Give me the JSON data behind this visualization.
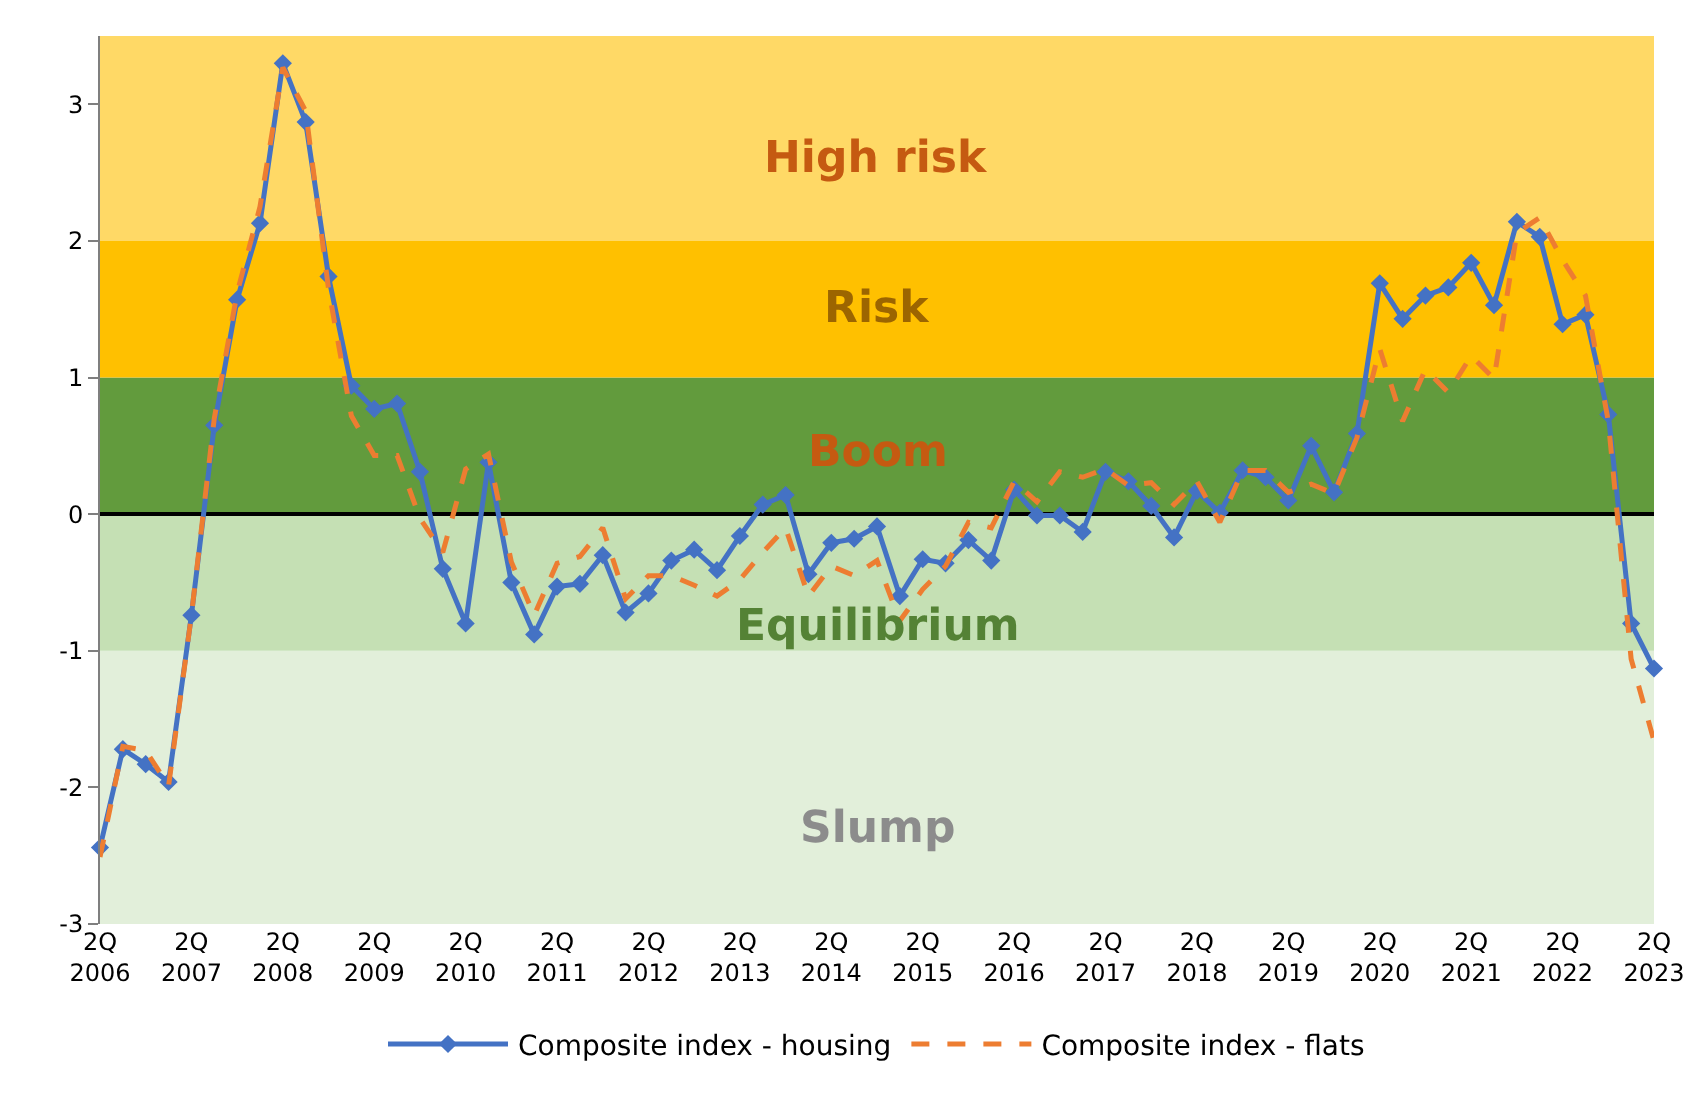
{
  "chart_data": {
    "type": "line",
    "categories": [
      "2Q 2006",
      null,
      null,
      null,
      "2Q 2007",
      null,
      null,
      null,
      "2Q 2008",
      null,
      null,
      null,
      "2Q 2009",
      null,
      null,
      null,
      "2Q 2010",
      null,
      null,
      null,
      "2Q 2011",
      null,
      null,
      null,
      "2Q 2012",
      null,
      null,
      null,
      "2Q 2013",
      null,
      null,
      null,
      "2Q 2014",
      null,
      null,
      null,
      "2Q 2015",
      null,
      null,
      null,
      "2Q 2016",
      null,
      null,
      null,
      "2Q 2017",
      null,
      null,
      null,
      "2Q 2018",
      null,
      null,
      null,
      "2Q 2019",
      null,
      null,
      null,
      "2Q 2020",
      null,
      null,
      null,
      "2Q 2021",
      null,
      null,
      null,
      "2Q 2022",
      null,
      null,
      null,
      "2Q 2023"
    ],
    "series": [
      {
        "name": "Composite index - housing",
        "color": "#4472c4",
        "marker": "diamond",
        "line_style": "solid",
        "values": [
          -2.44,
          -1.72,
          -1.83,
          -1.96,
          -0.74,
          0.65,
          1.57,
          2.13,
          3.3,
          2.87,
          1.74,
          0.94,
          0.77,
          0.81,
          0.31,
          -0.4,
          -0.8,
          0.38,
          -0.5,
          -0.88,
          -0.53,
          -0.51,
          -0.3,
          -0.72,
          -0.58,
          -0.34,
          -0.26,
          -0.41,
          -0.16,
          0.07,
          0.14,
          -0.44,
          -0.21,
          -0.18,
          -0.09,
          -0.6,
          -0.33,
          -0.36,
          -0.19,
          -0.34,
          0.18,
          -0.01,
          -0.01,
          -0.13,
          0.31,
          0.24,
          0.06,
          -0.17,
          0.17,
          0.01,
          0.32,
          0.27,
          0.1,
          0.5,
          0.16,
          0.59,
          1.69,
          1.43,
          1.6,
          1.66,
          1.84,
          1.53,
          2.14,
          2.03,
          1.39,
          1.46,
          0.73,
          -0.8,
          -1.13
        ]
      },
      {
        "name": "Composite index - flats",
        "color": "#ed7d31",
        "marker": "none",
        "line_style": "dashed",
        "values": [
          -2.51,
          -1.7,
          -1.73,
          -1.99,
          -0.74,
          0.7,
          1.62,
          2.25,
          3.27,
          2.95,
          1.65,
          0.72,
          0.43,
          0.43,
          -0.03,
          -0.28,
          0.33,
          0.44,
          -0.35,
          -0.74,
          -0.36,
          -0.31,
          -0.1,
          -0.62,
          -0.45,
          -0.45,
          -0.52,
          -0.6,
          -0.48,
          -0.28,
          -0.1,
          -0.6,
          -0.38,
          -0.45,
          -0.34,
          -0.78,
          -0.55,
          -0.38,
          -0.06,
          -0.1,
          0.24,
          0.09,
          0.31,
          0.27,
          0.33,
          0.21,
          0.23,
          0.07,
          0.24,
          -0.06,
          0.32,
          0.32,
          0.16,
          0.22,
          0.15,
          0.56,
          1.21,
          0.68,
          1.06,
          0.89,
          1.16,
          0.99,
          2.06,
          2.17,
          1.86,
          1.6,
          0.68,
          -1.06,
          -1.66
        ]
      }
    ],
    "ylim": [
      -3,
      3.5
    ],
    "yticks": [
      -3,
      -2,
      -1,
      0,
      1,
      2,
      3
    ],
    "bands": [
      {
        "axis": "y",
        "from": -3,
        "to": -1,
        "label": "Slump",
        "color": "#e2efda"
      },
      {
        "axis": "y",
        "from": -1,
        "to": 0,
        "label": "Equilibrium",
        "color": "#c5e0b4"
      },
      {
        "axis": "y",
        "from": 0,
        "to": 1,
        "label": "Boom",
        "color": "#629b3d"
      },
      {
        "axis": "y",
        "from": 1,
        "to": 2,
        "label": "Risk",
        "color": "#ffc000"
      },
      {
        "axis": "y",
        "from": 2,
        "to": 3.5,
        "label": "High risk",
        "color": "#ffd966"
      }
    ],
    "legend": "bottom"
  }
}
